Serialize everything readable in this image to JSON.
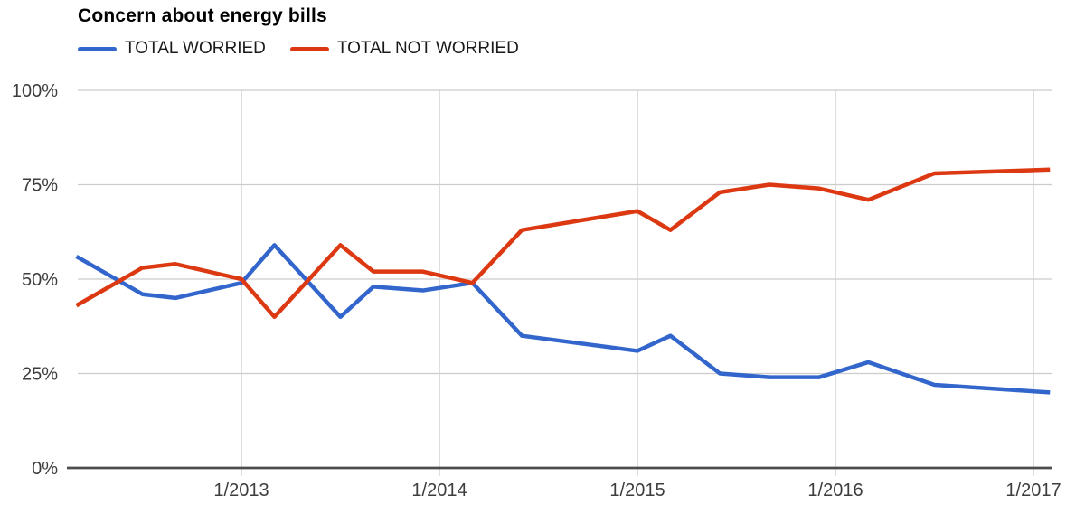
{
  "header": {
    "title": "Concern about energy bills"
  },
  "legend": [
    {
      "label": "TOTAL WORRIED",
      "color": "#3366cc"
    },
    {
      "label": "TOTAL NOT WORRIED",
      "color": "#dc3912"
    }
  ],
  "chart_data": {
    "type": "line",
    "title": "Concern about energy bills",
    "x": [
      "3/2012",
      "7/2012",
      "9/2012",
      "1/2013",
      "3/2013",
      "7/2013",
      "9/2013",
      "12/2013",
      "3/2014",
      "6/2014",
      "1/2015",
      "3/2015",
      "6/2015",
      "9/2015",
      "12/2015",
      "3/2016",
      "7/2016",
      "2/2017"
    ],
    "series": [
      {
        "name": "TOTAL WORRIED",
        "color": "#3366cc",
        "values": [
          56,
          46,
          45,
          49,
          59,
          40,
          48,
          47,
          49,
          35,
          31,
          35,
          25,
          24,
          24,
          28,
          22,
          20
        ]
      },
      {
        "name": "TOTAL NOT WORRIED",
        "color": "#dc3912",
        "values": [
          43,
          53,
          54,
          50,
          40,
          59,
          52,
          52,
          49,
          63,
          68,
          63,
          73,
          75,
          74,
          71,
          78,
          79
        ]
      }
    ],
    "x_tick_labels": [
      "1/2013",
      "1/2014",
      "1/2015",
      "1/2016",
      "1/2017"
    ],
    "y_tick_labels": [
      "0%",
      "25%",
      "50%",
      "75%",
      "100%"
    ],
    "y_tick_values": [
      0,
      25,
      50,
      75,
      100
    ],
    "ylim": [
      0,
      100
    ],
    "grid": true,
    "legend_position": "top-left"
  },
  "colors": {
    "grid": "#cccccc",
    "axis": "#4d4d4d",
    "tick_label": "#3d3d3d",
    "background": "#ffffff"
  }
}
